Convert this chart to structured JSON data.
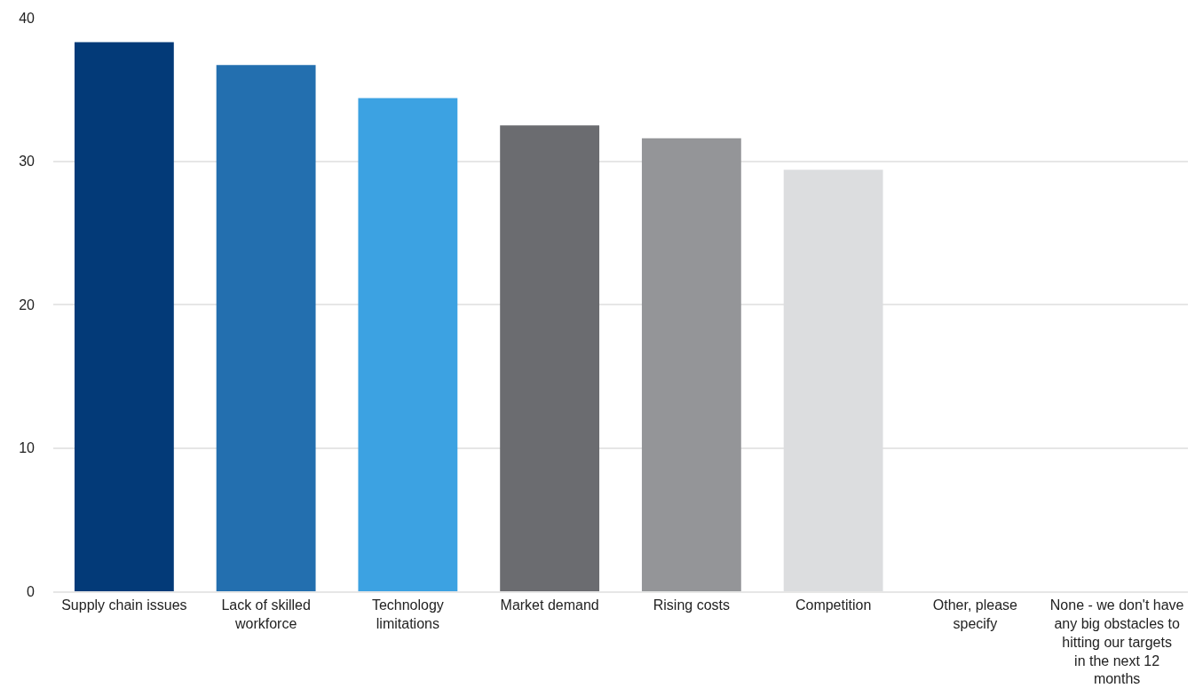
{
  "chart_data": {
    "type": "bar",
    "categories": [
      "Supply chain issues",
      "Lack of skilled workforce",
      "Technology limitations",
      "Market demand",
      "Rising costs",
      "Competition",
      "Other, please specify",
      "None - we don't have any big obstacles to hitting our targets in the next 12 months"
    ],
    "values": [
      38.3,
      36.7,
      34.4,
      32.5,
      31.6,
      29.4,
      0,
      0
    ],
    "colors": [
      "#033a78",
      "#236faf",
      "#3ca2e2",
      "#6b6c70",
      "#949598",
      "#dcdddf",
      "#dcdddf",
      "#dcdddf"
    ],
    "ylim": [
      0,
      40
    ],
    "yticks": [
      0,
      10,
      20,
      30,
      40
    ],
    "grid": "y"
  }
}
